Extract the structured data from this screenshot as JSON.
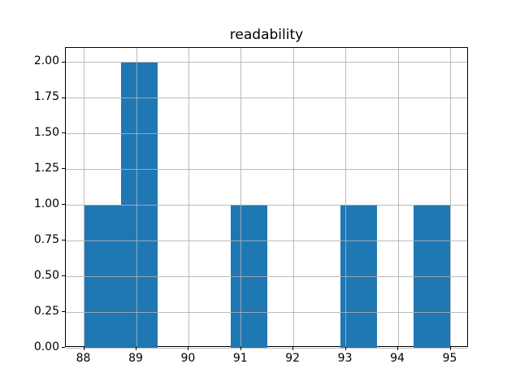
{
  "chart_data": {
    "type": "bar",
    "variant": "histogram",
    "title": "readability",
    "xlabel": "",
    "ylabel": "",
    "bin_edges": [
      88.0,
      88.7,
      89.4,
      90.1,
      90.8,
      91.5,
      92.2,
      92.9,
      93.6,
      94.3,
      95.0
    ],
    "counts": [
      1,
      2,
      0,
      0,
      1,
      0,
      0,
      1,
      0,
      1
    ],
    "x_ticks": [
      88,
      89,
      90,
      91,
      92,
      93,
      94,
      95
    ],
    "x_tick_labels": [
      "88",
      "89",
      "90",
      "91",
      "92",
      "93",
      "94",
      "95"
    ],
    "y_ticks": [
      0,
      0.25,
      0.5,
      0.75,
      1,
      1.25,
      1.5,
      1.75,
      2
    ],
    "y_tick_labels": [
      "0.00",
      "0.25",
      "0.50",
      "0.75",
      "1.00",
      "1.25",
      "1.50",
      "1.75",
      "2.00"
    ],
    "xlim": [
      87.65,
      95.35
    ],
    "ylim": [
      0,
      2.1
    ],
    "grid": true,
    "legend": null,
    "bar_color": "#1f77b4",
    "grid_color": "#b0b0b0",
    "axis_color": "#000000",
    "background_color": "#ffffff"
  }
}
